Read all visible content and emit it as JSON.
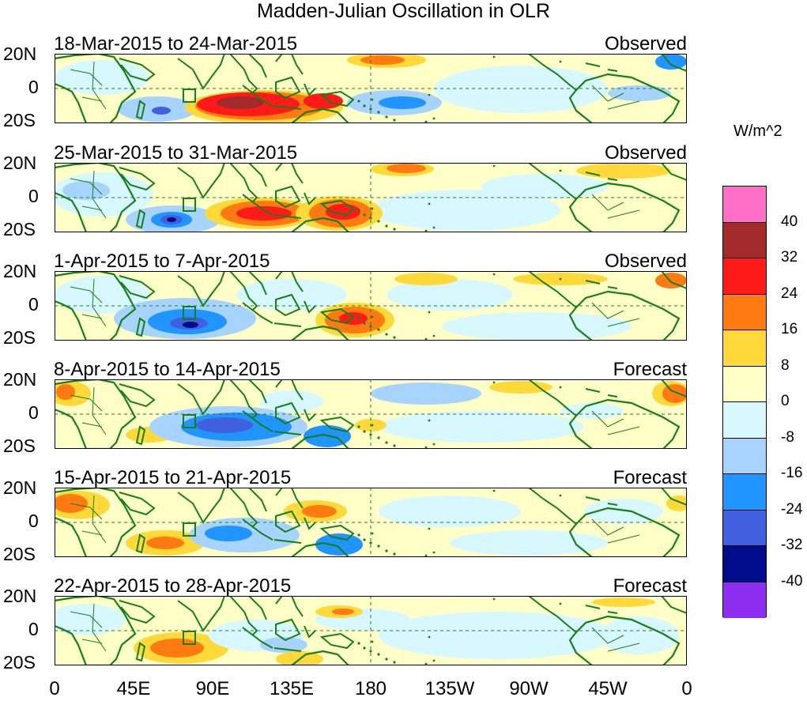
{
  "title": "Madden-Julian Oscillation in OLR",
  "units": "W/m^2",
  "latitude_labels": {
    "north": "20N",
    "equator": "0",
    "south": "20S"
  },
  "longitude_labels": [
    "0",
    "45E",
    "90E",
    "135E",
    "180",
    "135W",
    "90W",
    "45W",
    "0"
  ],
  "panels": [
    {
      "date_range": "18-Mar-2015 to 24-Mar-2015",
      "status": "Observed"
    },
    {
      "date_range": "25-Mar-2015 to 31-Mar-2015",
      "status": "Observed"
    },
    {
      "date_range": "1-Apr-2015 to 7-Apr-2015",
      "status": "Observed"
    },
    {
      "date_range": "8-Apr-2015 to 14-Apr-2015",
      "status": "Forecast"
    },
    {
      "date_range": "15-Apr-2015 to 21-Apr-2015",
      "status": "Forecast"
    },
    {
      "date_range": "22-Apr-2015 to 28-Apr-2015",
      "status": "Forecast"
    }
  ],
  "colorbar": {
    "colors": [
      "#ff6ec7",
      "#a32a2a",
      "#ff1a1a",
      "#ff7a10",
      "#ffd83a",
      "#ffffc8",
      "#d8f8ff",
      "#a6d4ff",
      "#2094ff",
      "#4060e0",
      "#000c8c",
      "#8e2ef0"
    ],
    "labels": [
      "40",
      "32",
      "24",
      "16",
      "8",
      "0",
      "-8",
      "-16",
      "-24",
      "-32",
      "-40"
    ]
  },
  "colors": {
    "coastline": "#168018",
    "equator_line": "#2a7a2a",
    "frame": "#000000"
  }
}
